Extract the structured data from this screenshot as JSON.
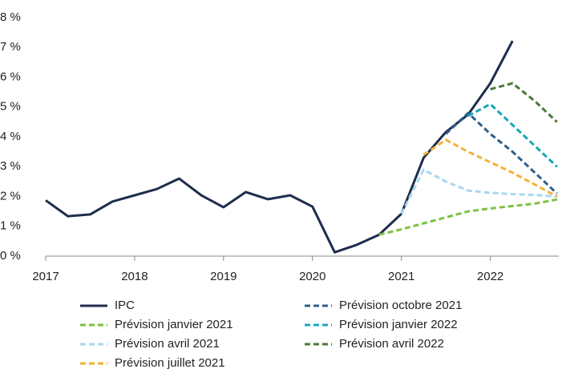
{
  "chart_data": {
    "type": "line",
    "xlim": [
      2017,
      2022.77
    ],
    "xticks": [
      2017,
      2018,
      2019,
      2020,
      2021,
      2022
    ],
    "ylim": [
      0,
      8
    ],
    "yticks": [
      {
        "value": 0,
        "label": "0 %"
      },
      {
        "value": 1,
        "label": "1 %"
      },
      {
        "value": 2,
        "label": "2 %"
      },
      {
        "value": 3,
        "label": "3 %"
      },
      {
        "value": 4,
        "label": "4 %"
      },
      {
        "value": 5,
        "label": "5 %"
      },
      {
        "value": 6,
        "label": "6 %"
      },
      {
        "value": 7,
        "label": "7 %"
      },
      {
        "value": 8,
        "label": "8 %"
      }
    ],
    "grid": false,
    "series": [
      {
        "name": "IPC",
        "color": "#1f2d4e",
        "dashed": false,
        "x": [
          2017,
          2017.25,
          2017.5,
          2017.75,
          2018,
          2018.25,
          2018.5,
          2018.75,
          2019,
          2019.25,
          2019.5,
          2019.75,
          2020,
          2020.25,
          2020.5,
          2020.75,
          2021,
          2021.25,
          2021.5,
          2021.75,
          2022,
          2022.25
        ],
        "values": [
          1.87,
          1.34,
          1.4,
          1.83,
          2.04,
          2.25,
          2.6,
          2.04,
          1.64,
          2.15,
          1.91,
          2.04,
          1.66,
          0.13,
          0.38,
          0.72,
          1.42,
          3.3,
          4.16,
          4.75,
          5.8,
          7.22
        ]
      },
      {
        "name": "Prévision janvier 2021",
        "color": "#7dc242",
        "dashed": true,
        "x": [
          2020.75,
          2021,
          2021.25,
          2021.5,
          2021.75,
          2022,
          2022.25,
          2022.5,
          2022.75
        ],
        "values": [
          0.72,
          0.9,
          1.1,
          1.3,
          1.5,
          1.6,
          1.68,
          1.76,
          1.9
        ]
      },
      {
        "name": "Prévision avril 2021",
        "color": "#a8d8ee",
        "dashed": true,
        "x": [
          2021,
          2021.25,
          2021.5,
          2021.75,
          2022,
          2022.25,
          2022.5,
          2022.75
        ],
        "values": [
          1.42,
          2.9,
          2.5,
          2.2,
          2.12,
          2.08,
          2.05,
          2.0
        ]
      },
      {
        "name": "Prévision juillet 2021",
        "color": "#f2b234",
        "dashed": true,
        "x": [
          2021.25,
          2021.5,
          2021.75,
          2022,
          2022.25,
          2022.5,
          2022.75
        ],
        "values": [
          3.4,
          3.9,
          3.5,
          3.15,
          2.8,
          2.4,
          2.0
        ]
      },
      {
        "name": "Prévision octobre 2021",
        "color": "#2e5f8a",
        "dashed": true,
        "x": [
          2021.5,
          2021.75,
          2022,
          2022.25,
          2022.5,
          2022.75
        ],
        "values": [
          4.1,
          4.8,
          4.1,
          3.5,
          2.8,
          2.1
        ]
      },
      {
        "name": "Prévision janvier 2022",
        "color": "#1aa6b7",
        "dashed": true,
        "x": [
          2021.75,
          2022,
          2022.25,
          2022.5,
          2022.75
        ],
        "values": [
          4.7,
          5.1,
          4.4,
          3.7,
          3.0
        ]
      },
      {
        "name": "Prévision avril 2022",
        "color": "#4c7a3a",
        "dashed": true,
        "x": [
          2022,
          2022.25,
          2022.5,
          2022.75
        ],
        "values": [
          5.6,
          5.8,
          5.2,
          4.5
        ]
      }
    ]
  }
}
